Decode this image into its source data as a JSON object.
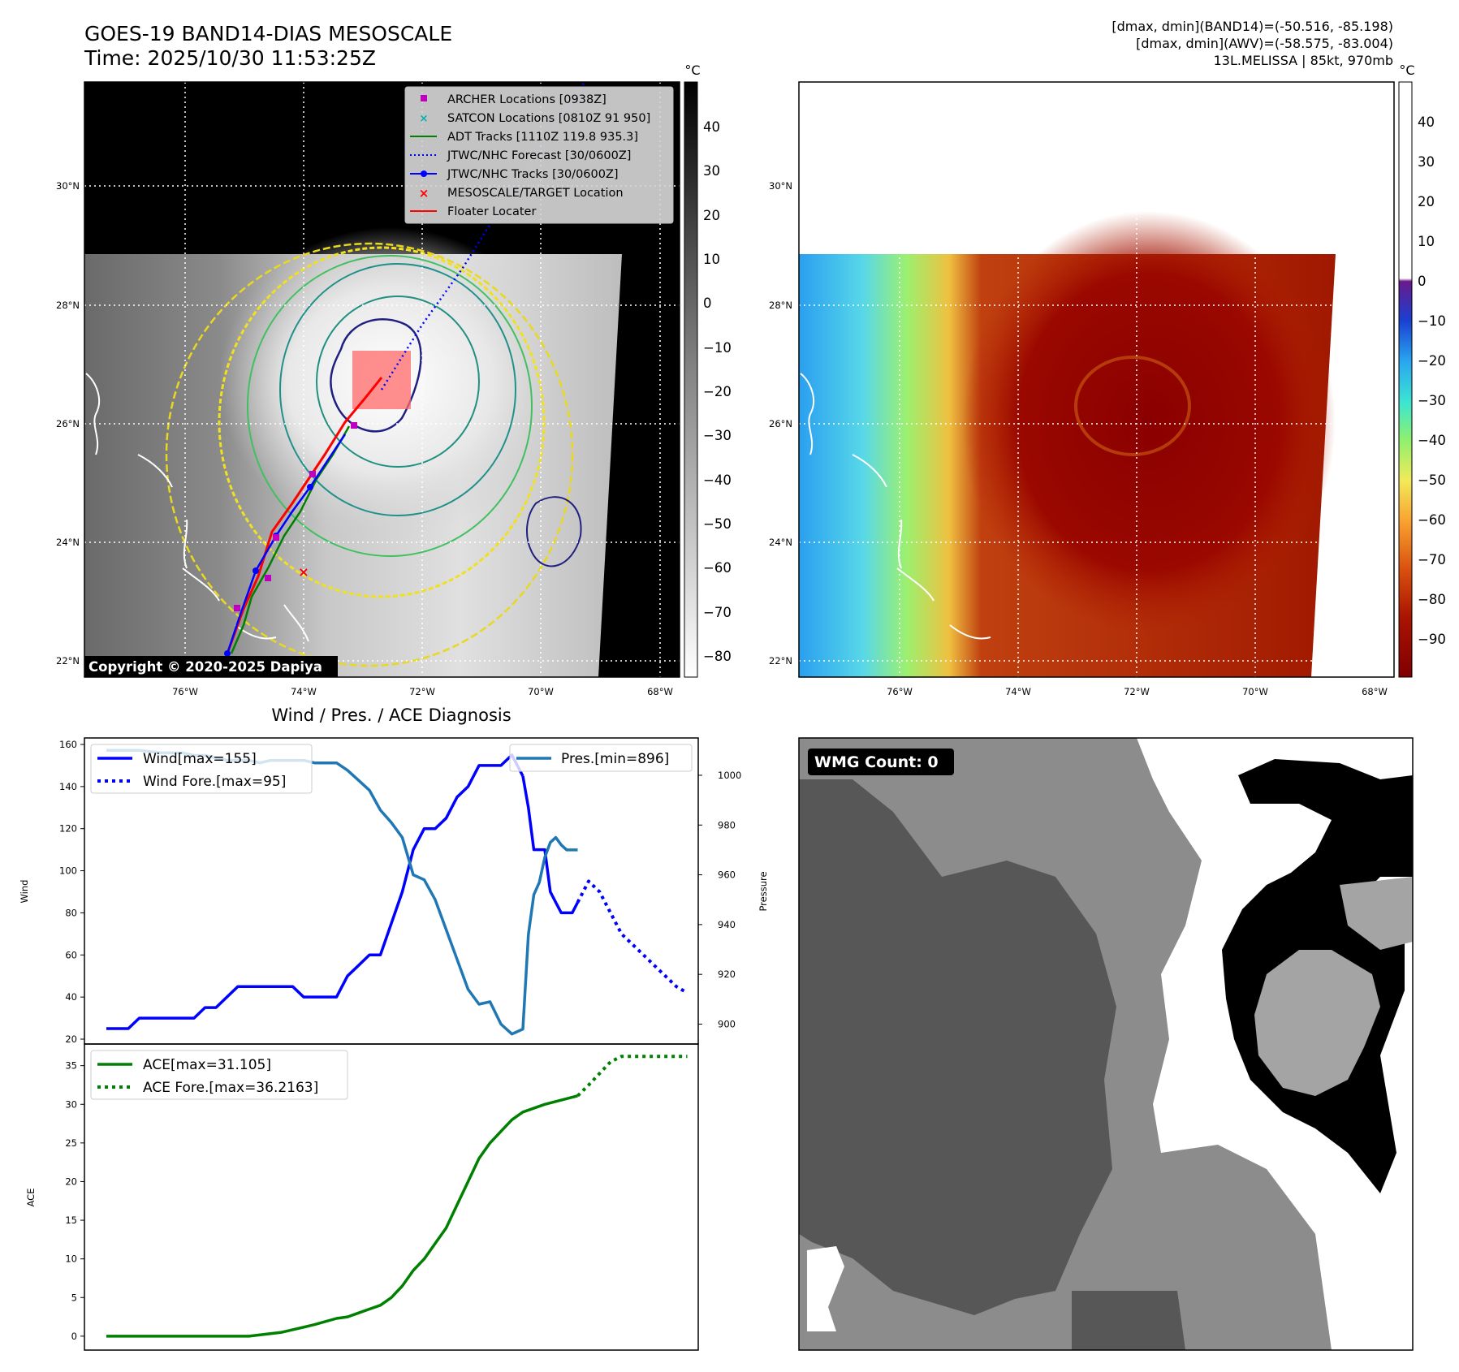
{
  "header": {
    "title": "GOES-19 BAND14-DIAS MESOSCALE",
    "time": "Time: 2025/10/30 11:53:25Z",
    "stats": [
      "[dmax, dmin](BAND14)=(-50.516, -85.198)",
      "[dmax, dmin](AWV)=(-58.575, -83.004)",
      "13L.MELISSA | 85kt, 970mb"
    ]
  },
  "map_axes": {
    "lon_labels": [
      "76°W",
      "74°W",
      "72°W",
      "70°W",
      "68°W"
    ],
    "lat_labels": [
      "30°N",
      "28°N",
      "26°N",
      "24°N",
      "22°N"
    ]
  },
  "ir_panel": {
    "copyright": "Copyright © 2020-2025 Dapiya",
    "colorbar_unit": "°C",
    "colorbar_ticks": [
      "40",
      "30",
      "20",
      "10",
      "0",
      "−10",
      "−20",
      "−30",
      "−40",
      "−50",
      "−60",
      "−70",
      "−80"
    ],
    "legend": [
      {
        "label": "ARCHER Locations [0938Z]",
        "color": "#c000c0",
        "marker": "square"
      },
      {
        "label": "SATCON Locations [0810Z 91 950]",
        "color": "#00b0b0",
        "marker": "x"
      },
      {
        "label": "ADT Tracks [1110Z 119.8 935.3]",
        "color": "#008000",
        "marker": "line"
      },
      {
        "label": "JTWC/NHC Forecast [30/0600Z]",
        "color": "#0000ff",
        "marker": "dotted"
      },
      {
        "label": "JTWC/NHC Tracks [30/0600Z]",
        "color": "#0000ff",
        "marker": "line-dot"
      },
      {
        "label": "MESOSCALE/TARGET Location",
        "color": "#ff0000",
        "marker": "x"
      },
      {
        "label": "Floater Locater",
        "color": "#ff0000",
        "marker": "line"
      }
    ]
  },
  "awv_panel": {
    "colorbar_unit": "°C",
    "colorbar_ticks": [
      "40",
      "30",
      "20",
      "10",
      "0",
      "−10",
      "−20",
      "−30",
      "−40",
      "−50",
      "−60",
      "−70",
      "−80",
      "−90"
    ]
  },
  "wmg_panel": {
    "label": "WMG Count: 0"
  },
  "diag": {
    "title": "Wind / Pres. / ACE Diagnosis",
    "wind_ylabel": "Wind",
    "pres_ylabel": "Pressure",
    "ace_ylabel": "ACE",
    "legend_wind": "Wind[max=155]",
    "legend_wind_fore": "Wind Fore.[max=95]",
    "legend_pres": "Pres.[min=896]",
    "legend_ace": "ACE[max=31.105]",
    "legend_ace_fore": "ACE Fore.[max=36.2163]"
  },
  "chart_data": [
    {
      "type": "line",
      "title": "Wind / Pres. / ACE Diagnosis",
      "ylabel": "Wind",
      "ylim": [
        20,
        160
      ],
      "yticks": [
        20,
        40,
        60,
        80,
        100,
        120,
        140,
        160
      ],
      "y2label": "Pressure",
      "y2lim": [
        892,
        1015
      ],
      "y2ticks": [
        900,
        920,
        940,
        960,
        980,
        1000
      ],
      "xlim": [
        -2,
        54
      ],
      "series": [
        {
          "name": "Wind[max=155]",
          "axis": "left",
          "color": "#0000ff",
          "style": "solid",
          "x": [
            0,
            2,
            3,
            5,
            6,
            7,
            8,
            9,
            10,
            11,
            12,
            13,
            14,
            16,
            17,
            18,
            19,
            20,
            21,
            22,
            23,
            24,
            25,
            26,
            27,
            28,
            29,
            30,
            31,
            32,
            33,
            34,
            35,
            36,
            37,
            38
          ],
          "y": [
            25,
            25,
            30,
            30,
            30,
            30,
            30,
            35,
            35,
            40,
            45,
            45,
            45,
            45,
            45,
            40,
            40,
            40,
            40,
            50,
            55,
            60,
            60,
            75,
            90,
            110,
            120,
            120,
            125,
            135,
            140,
            150,
            150,
            150,
            155,
            145
          ]
        },
        {
          "name": "Wind[max=155]",
          "axis": "left",
          "color": "#0000ff",
          "style": "solid",
          "x": [
            38,
            38.5,
            39,
            39.5,
            40,
            40.5,
            41,
            41.5,
            42,
            42.5,
            43
          ],
          "y": [
            145,
            130,
            110,
            110,
            110,
            90,
            85,
            80,
            80,
            80,
            85
          ]
        },
        {
          "name": "Wind Fore.[max=95]",
          "axis": "left",
          "color": "#0000ff",
          "style": "dotted",
          "x": [
            43,
            44,
            45,
            46,
            47,
            48,
            49,
            50,
            51,
            52,
            53
          ],
          "y": [
            85,
            95,
            90,
            80,
            70,
            65,
            60,
            55,
            50,
            45,
            42
          ]
        },
        {
          "name": "Pres.[min=896]",
          "axis": "right",
          "color": "#1f77b4",
          "style": "solid",
          "x": [
            0,
            3,
            5,
            6,
            7,
            8,
            9,
            10,
            11,
            12,
            13,
            14,
            15,
            16,
            17,
            18,
            19,
            20,
            21,
            22,
            23,
            24,
            25,
            26,
            27,
            28,
            29,
            30,
            31,
            32,
            33,
            34,
            35,
            36,
            37,
            38,
            38.5,
            39,
            39.5,
            40,
            40.5,
            41,
            41.5,
            42,
            43
          ],
          "y": [
            1010,
            1010,
            1009,
            1009,
            1009,
            1008,
            1008,
            1007,
            1006,
            1006,
            1006,
            1005,
            1006,
            1006,
            1006,
            1006,
            1005,
            1005,
            1005,
            1002,
            998,
            994,
            986,
            981,
            975,
            960,
            958,
            950,
            938,
            926,
            914,
            908,
            909,
            900,
            896,
            898,
            936,
            952,
            957,
            967,
            973,
            975,
            972,
            970,
            970
          ]
        }
      ]
    },
    {
      "type": "line",
      "ylabel": "ACE",
      "ylim": [
        -1.8,
        37.8
      ],
      "yticks": [
        0,
        5,
        10,
        15,
        20,
        25,
        30,
        35
      ],
      "xlim": [
        -2,
        54
      ],
      "series": [
        {
          "name": "ACE[max=31.105]",
          "color": "#008000",
          "style": "solid",
          "x": [
            0,
            5,
            9,
            10,
            13,
            16,
            19,
            21,
            22,
            23,
            24,
            25,
            26,
            27,
            28,
            29,
            30,
            31,
            32,
            33,
            34,
            35,
            36,
            37,
            38,
            40,
            43
          ],
          "y": [
            0,
            0,
            0,
            0,
            0,
            0.5,
            1.5,
            2.3,
            2.5,
            3,
            3.5,
            4,
            5,
            6.5,
            8.5,
            10,
            12,
            14,
            17,
            20,
            23,
            25,
            26.5,
            28,
            29,
            30,
            31.1
          ]
        },
        {
          "name": "ACE Fore.[max=36.2163]",
          "color": "#008000",
          "style": "dotted",
          "x": [
            43,
            44,
            45,
            46,
            47,
            48,
            49,
            50,
            51,
            52,
            53
          ],
          "y": [
            31.1,
            32.5,
            34,
            35.5,
            36.2,
            36.2,
            36.2,
            36.2,
            36.2,
            36.2,
            36.2
          ]
        }
      ]
    }
  ]
}
